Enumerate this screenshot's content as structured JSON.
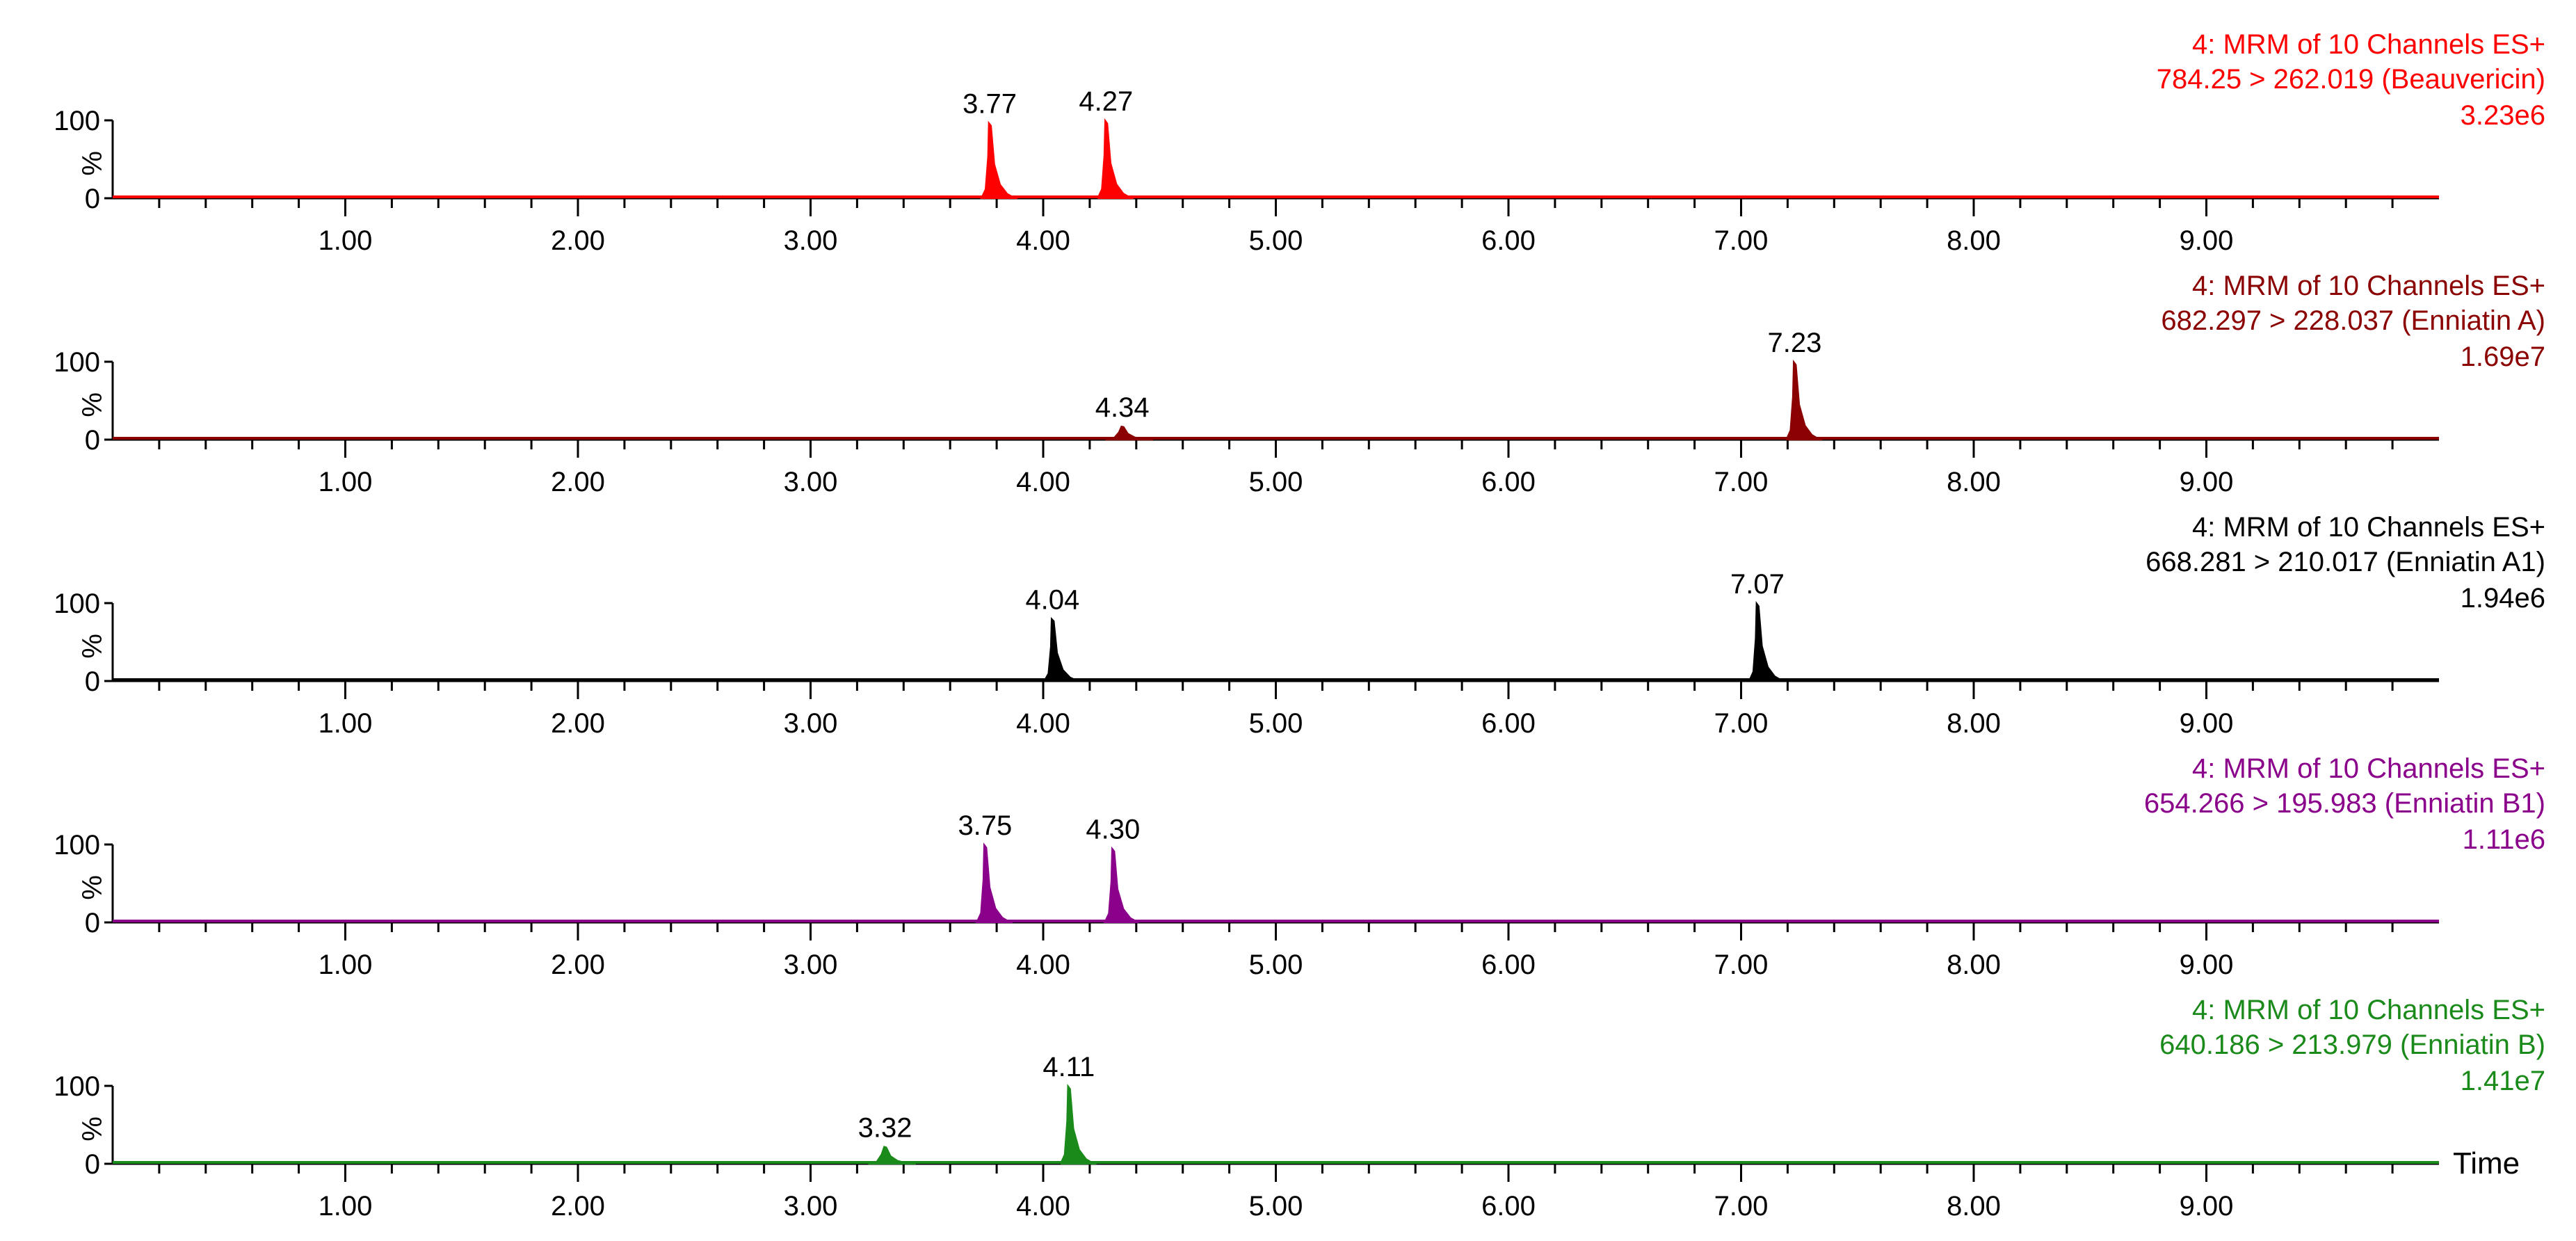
{
  "chart_data": [
    {
      "type": "line",
      "header_line1": "4: MRM of 10 Channels ES+",
      "header_line2": "784.25 > 262.019 (Beauvericin)",
      "intensity": "3.23e6",
      "color": "#ff0000",
      "y_ticks": [
        "100",
        "%",
        "0"
      ],
      "xlim": [
        0,
        10
      ],
      "ylim": [
        0,
        100
      ],
      "x_tick_labels": [
        "1.00",
        "2.00",
        "3.00",
        "4.00",
        "5.00",
        "6.00",
        "7.00",
        "8.00",
        "9.00"
      ],
      "x_axis_title": "",
      "peaks": [
        {
          "rt": 3.77,
          "height": 97,
          "label": "3.77"
        },
        {
          "rt": 4.27,
          "height": 100,
          "label": "4.27"
        }
      ]
    },
    {
      "type": "line",
      "header_line1": "4: MRM of 10 Channels ES+",
      "header_line2": "682.297 > 228.037 (Enniatin A)",
      "intensity": "1.69e7",
      "color": "#8b0000",
      "y_ticks": [
        "100",
        "%",
        "0"
      ],
      "xlim": [
        0,
        10
      ],
      "ylim": [
        0,
        100
      ],
      "x_tick_labels": [
        "1.00",
        "2.00",
        "3.00",
        "4.00",
        "5.00",
        "6.00",
        "7.00",
        "8.00",
        "9.00"
      ],
      "x_axis_title": "",
      "peaks": [
        {
          "rt": 4.34,
          "height": 17,
          "label": "4.34"
        },
        {
          "rt": 7.23,
          "height": 100,
          "label": "7.23"
        }
      ]
    },
    {
      "type": "line",
      "header_line1": "4: MRM of 10 Channels ES+",
      "header_line2": "668.281 > 210.017 (Enniatin A1)",
      "intensity": "1.94e6",
      "color": "#000000",
      "y_ticks": [
        "100",
        "%",
        "0"
      ],
      "xlim": [
        0,
        10
      ],
      "ylim": [
        0,
        100
      ],
      "x_tick_labels": [
        "1.00",
        "2.00",
        "3.00",
        "4.00",
        "5.00",
        "6.00",
        "7.00",
        "8.00",
        "9.00"
      ],
      "x_axis_title": "",
      "peaks": [
        {
          "rt": 4.04,
          "height": 80,
          "label": "4.04"
        },
        {
          "rt": 7.07,
          "height": 100,
          "label": "7.07"
        }
      ]
    },
    {
      "type": "line",
      "header_line1": "4: MRM of 10 Channels ES+",
      "header_line2": "654.266 > 195.983 (Enniatin B1)",
      "intensity": "1.11e6",
      "color": "#8b008b",
      "y_ticks": [
        "100",
        "%",
        "0"
      ],
      "xlim": [
        0,
        10
      ],
      "ylim": [
        0,
        100
      ],
      "x_tick_labels": [
        "1.00",
        "2.00",
        "3.00",
        "4.00",
        "5.00",
        "6.00",
        "7.00",
        "8.00",
        "9.00"
      ],
      "x_axis_title": "",
      "peaks": [
        {
          "rt": 3.75,
          "height": 100,
          "label": "3.75"
        },
        {
          "rt": 4.3,
          "height": 95,
          "label": "4.30"
        }
      ]
    },
    {
      "type": "line",
      "header_line1": "4: MRM of 10 Channels ES+",
      "header_line2": "640.186 > 213.979 (Enniatin B)",
      "intensity": "1.41e7",
      "color": "#1a8a1a",
      "y_ticks": [
        "100",
        "%",
        "0"
      ],
      "xlim": [
        0,
        10
      ],
      "ylim": [
        0,
        100
      ],
      "x_tick_labels": [
        "1.00",
        "2.00",
        "3.00",
        "4.00",
        "5.00",
        "6.00",
        "7.00",
        "8.00",
        "9.00"
      ],
      "x_axis_title": "Time",
      "peaks": [
        {
          "rt": 3.32,
          "height": 22,
          "label": "3.32"
        },
        {
          "rt": 4.11,
          "height": 100,
          "label": "4.11"
        }
      ]
    }
  ]
}
